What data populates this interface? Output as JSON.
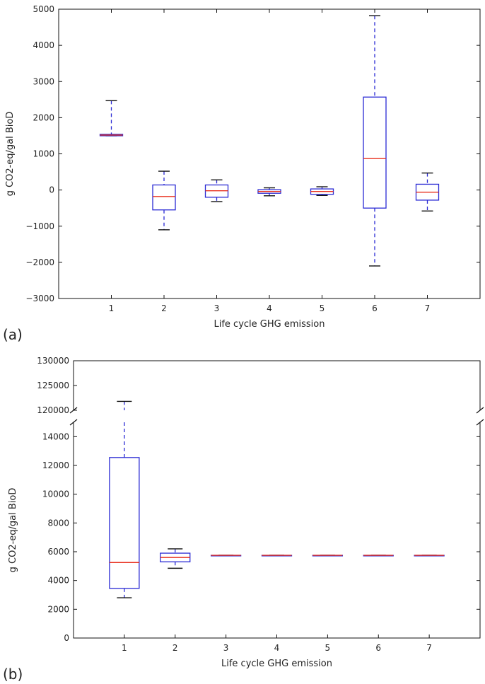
{
  "chart_data": [
    {
      "type": "box",
      "panel_label": "(a)",
      "categories": [
        "1",
        "2",
        "3",
        "4",
        "5",
        "6",
        "7"
      ],
      "xlabel": "Life cycle GHG emission",
      "ylabel": "g CO2-eq/gal BioD",
      "ylim": [
        -3000,
        5000
      ],
      "yticks": [
        -3000,
        -2000,
        -1000,
        0,
        1000,
        2000,
        3000,
        4000,
        5000
      ],
      "ytick_labels": [
        "−3000",
        "−2000",
        "−1000",
        "0",
        "1000",
        "2000",
        "3000",
        "4000",
        "5000"
      ],
      "boxes": [
        {
          "min": 1500,
          "q1": 1500,
          "median": 1520,
          "q3": 1540,
          "max": 2470
        },
        {
          "min": -1100,
          "q1": -550,
          "median": -180,
          "q3": 140,
          "max": 520
        },
        {
          "min": -320,
          "q1": -200,
          "median": -20,
          "q3": 140,
          "max": 280
        },
        {
          "min": -160,
          "q1": -90,
          "median": -40,
          "q3": 10,
          "max": 60
        },
        {
          "min": -150,
          "q1": -120,
          "median": -40,
          "q3": 30,
          "max": 90
        },
        {
          "min": -2100,
          "q1": -500,
          "median": 870,
          "q3": 2570,
          "max": 4820
        },
        {
          "min": -580,
          "q1": -280,
          "median": -60,
          "q3": 160,
          "max": 470
        }
      ],
      "colors": {
        "box": "#2a2ad4",
        "median": "#e8301f",
        "cap": "#111111"
      }
    },
    {
      "type": "box",
      "panel_label": "(b)",
      "broken_axis": true,
      "categories": [
        "1",
        "2",
        "3",
        "4",
        "5",
        "6",
        "7"
      ],
      "xlabel": "Life cycle GHG emission",
      "ylabel": "g CO2-eq/gal BioD",
      "ylim_lower": [
        0,
        15000
      ],
      "ylim_upper": [
        120000,
        130000
      ],
      "yticks_lower": [
        0,
        2000,
        4000,
        6000,
        8000,
        10000,
        12000,
        14000
      ],
      "yticks_upper": [
        120000,
        125000,
        130000
      ],
      "ytick_labels_lower": [
        "0",
        "2000",
        "4000",
        "6000",
        "8000",
        "10000",
        "12000",
        "14000"
      ],
      "ytick_labels_upper": [
        "120000",
        "125000",
        "130000"
      ],
      "boxes": [
        {
          "min": 2800,
          "q1": 3450,
          "median": 5250,
          "q3": 12550,
          "max": 121800
        },
        {
          "min": 4850,
          "q1": 5300,
          "median": 5600,
          "q3": 5900,
          "max": 6200
        },
        {
          "min": 5750,
          "q1": 5750,
          "median": 5750,
          "q3": 5750,
          "max": 5750
        },
        {
          "min": 5750,
          "q1": 5750,
          "median": 5750,
          "q3": 5750,
          "max": 5750
        },
        {
          "min": 5750,
          "q1": 5750,
          "median": 5750,
          "q3": 5750,
          "max": 5750
        },
        {
          "min": 5750,
          "q1": 5750,
          "median": 5750,
          "q3": 5750,
          "max": 5750
        },
        {
          "min": 5750,
          "q1": 5750,
          "median": 5750,
          "q3": 5750,
          "max": 5750
        }
      ],
      "colors": {
        "box": "#2a2ad4",
        "median": "#e8301f",
        "cap": "#111111"
      }
    }
  ]
}
